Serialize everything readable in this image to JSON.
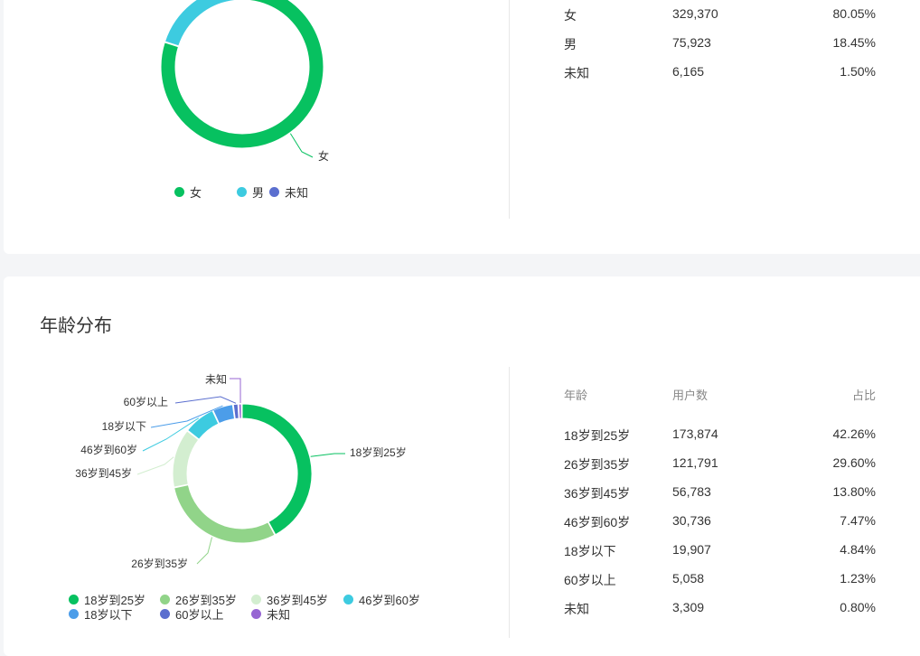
{
  "colors": {
    "card_bg": "#ffffff",
    "page_bg": "#f4f5f7",
    "green": "#07c160",
    "light_green": "#91d489",
    "pale_green": "#d3eed0",
    "cyan": "#3dcbe0",
    "blue": "#4c9de9",
    "indigo": "#5b6fcf",
    "purple": "#9766d3"
  },
  "gender": {
    "rows": [
      {
        "label": "女",
        "users": "329,370",
        "ratio": "80.05%"
      },
      {
        "label": "男",
        "users": "75,923",
        "ratio": "18.45%"
      },
      {
        "label": "未知",
        "users": "6,165",
        "ratio": "1.50%"
      }
    ]
  },
  "age": {
    "title": "年龄分布",
    "table_header": {
      "col1": "年龄",
      "col2": "用户数",
      "col3": "占比"
    },
    "rows": [
      {
        "label": "18岁到25岁",
        "users": "173,874",
        "ratio": "42.26%"
      },
      {
        "label": "26岁到35岁",
        "users": "121,791",
        "ratio": "29.60%"
      },
      {
        "label": "36岁到45岁",
        "users": "56,783",
        "ratio": "13.80%"
      },
      {
        "label": "46岁到60岁",
        "users": "30,736",
        "ratio": "7.47%"
      },
      {
        "label": "18岁以下",
        "users": "19,907",
        "ratio": "4.84%"
      },
      {
        "label": "60岁以上",
        "users": "5,058",
        "ratio": "1.23%"
      },
      {
        "label": "未知",
        "users": "3,309",
        "ratio": "0.80%"
      }
    ]
  },
  "chart_data": [
    {
      "type": "pie",
      "donut": true,
      "categories": [
        "女",
        "男",
        "未知"
      ],
      "values": [
        80.05,
        18.45,
        1.5
      ],
      "colors": [
        "#07c160",
        "#3dcbe0",
        "#5b6fcf"
      ],
      "slice_labels_shown": [
        "女"
      ],
      "legend": [
        "女",
        "男",
        "未知"
      ],
      "legend_position": "bottom"
    },
    {
      "type": "pie",
      "donut": true,
      "categories": [
        "18岁到25岁",
        "26岁到35岁",
        "36岁到45岁",
        "46岁到60岁",
        "18岁以下",
        "60岁以上",
        "未知"
      ],
      "values": [
        42.26,
        29.6,
        13.8,
        7.47,
        4.84,
        1.23,
        0.8
      ],
      "colors": [
        "#07c160",
        "#91d489",
        "#d3eed0",
        "#3dcbe0",
        "#4c9de9",
        "#5b6fcf",
        "#9766d3"
      ],
      "slice_labels_shown": [
        "18岁到25岁",
        "26岁到35岁",
        "36岁到45岁",
        "46岁到60岁",
        "18岁以下",
        "60岁以上",
        "未知"
      ],
      "legend": [
        "18岁到25岁",
        "26岁到35岁",
        "36岁到45岁",
        "46岁到60岁",
        "18岁以下",
        "60岁以上",
        "未知"
      ],
      "legend_position": "bottom"
    }
  ]
}
